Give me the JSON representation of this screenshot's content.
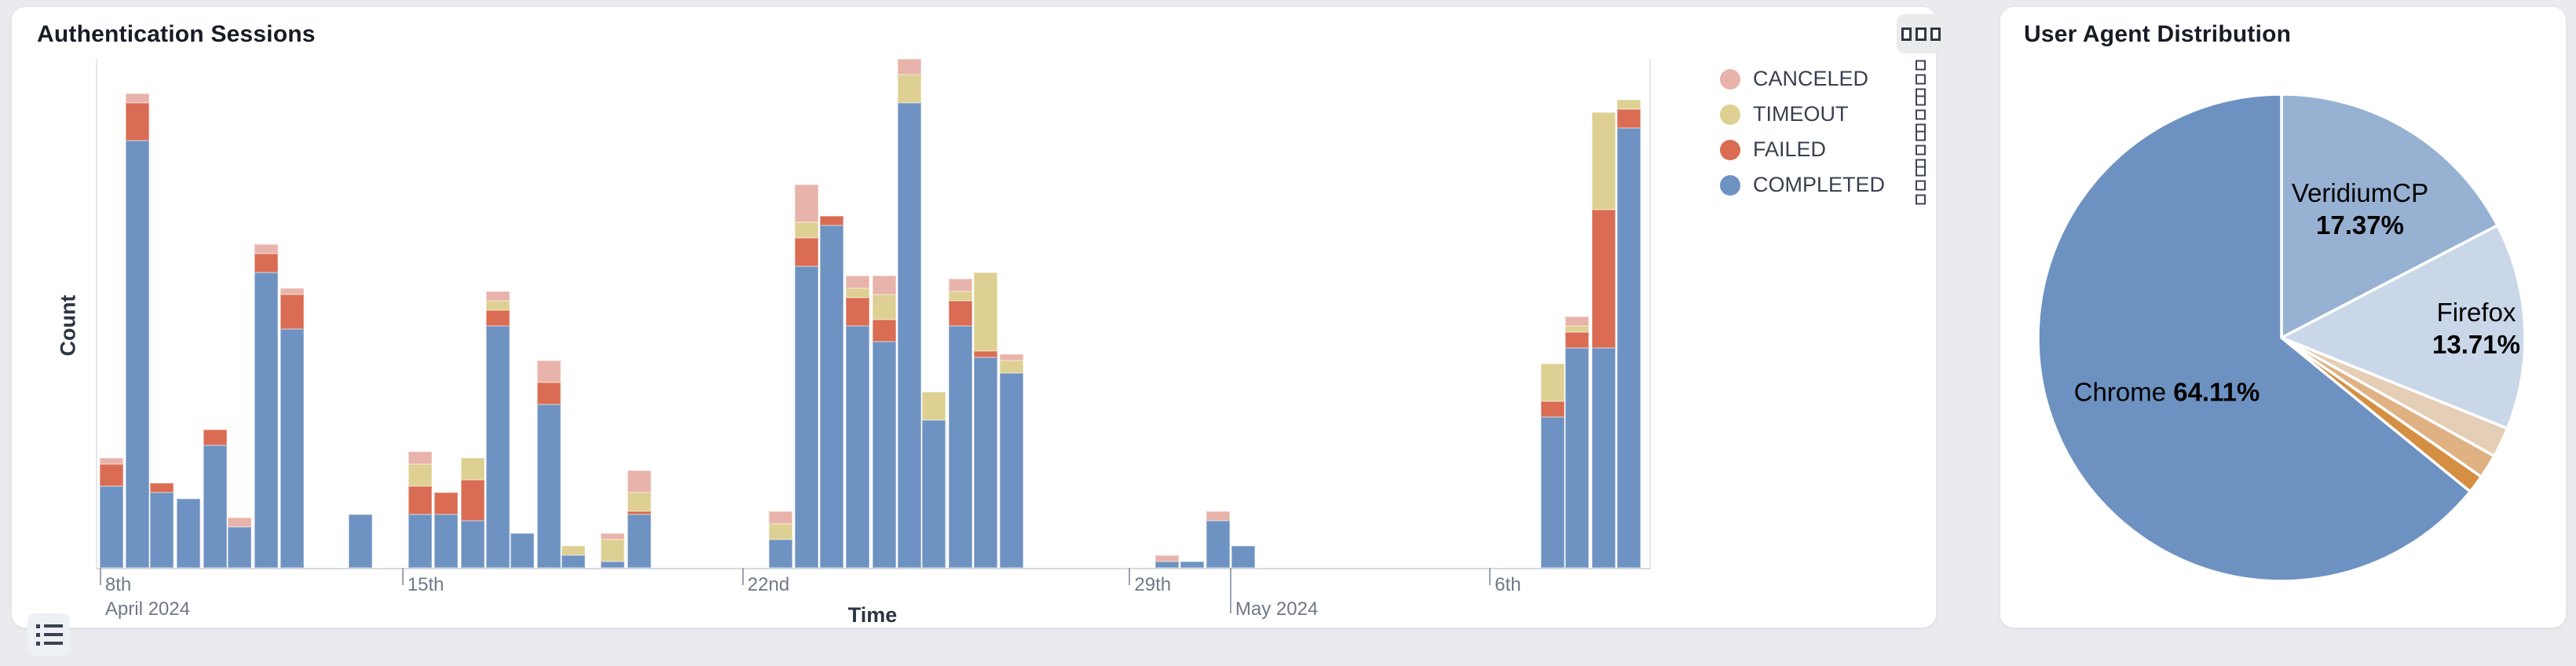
{
  "page": {
    "background": "#e9ebee"
  },
  "left_card": {
    "title": "Authentication Sessions",
    "menu_button_icon": "three-squares-icon",
    "list_button_icon": "list-icon",
    "x_axis_title": "Time",
    "y_axis_title": "Count",
    "legend": [
      {
        "label": "CANCELED",
        "color": "#e8b3aa"
      },
      {
        "label": "TIMEOUT",
        "color": "#ddd092"
      },
      {
        "label": "FAILED",
        "color": "#d96c52"
      },
      {
        "label": "COMPLETED",
        "color": "#6e92c1"
      }
    ]
  },
  "right_card": {
    "title": "User Agent Distribution"
  },
  "chart_data": [
    {
      "type": "bar",
      "stacked": true,
      "title": "Authentication Sessions",
      "xlabel": "Time",
      "ylabel": "Count",
      "grid": false,
      "y_tick_labels_visible": false,
      "ylim": [
        0,
        165
      ],
      "legend_position": "right-outside",
      "series_order": [
        "COMPLETED",
        "FAILED",
        "TIMEOUT",
        "CANCELED"
      ],
      "colors": {
        "COMPLETED": "#6e92c1",
        "FAILED": "#d96c52",
        "TIMEOUT": "#ddd092",
        "CANCELED": "#e8b3aa"
      },
      "x_ticks": [
        {
          "label": "8th",
          "sub": "April 2024",
          "pos": 0.0025,
          "long": false
        },
        {
          "label": "15th",
          "sub": null,
          "pos": 0.197,
          "long": false
        },
        {
          "label": "22nd",
          "sub": null,
          "pos": 0.416,
          "long": false
        },
        {
          "label": "29th",
          "sub": null,
          "pos": 0.665,
          "long": false
        },
        {
          "label": "May 2024",
          "sub": null,
          "pos": 0.73,
          "long": true,
          "month": true
        },
        {
          "label": "6th",
          "sub": null,
          "pos": 0.897,
          "long": false
        }
      ],
      "bars": [
        {
          "pos": 0.0025,
          "COMPLETED": 26,
          "FAILED": 7,
          "TIMEOUT": 0,
          "CANCELED": 2
        },
        {
          "pos": 0.019,
          "COMPLETED": 136,
          "FAILED": 12,
          "TIMEOUT": 0,
          "CANCELED": 3
        },
        {
          "pos": 0.035,
          "COMPLETED": 24,
          "FAILED": 3,
          "TIMEOUT": 0,
          "CANCELED": 0
        },
        {
          "pos": 0.052,
          "COMPLETED": 22,
          "FAILED": 0,
          "TIMEOUT": 0,
          "CANCELED": 0
        },
        {
          "pos": 0.069,
          "COMPLETED": 39,
          "FAILED": 5,
          "TIMEOUT": 0,
          "CANCELED": 0
        },
        {
          "pos": 0.085,
          "COMPLETED": 13,
          "FAILED": 0,
          "TIMEOUT": 0,
          "CANCELED": 3
        },
        {
          "pos": 0.102,
          "COMPLETED": 94,
          "FAILED": 6,
          "TIMEOUT": 0,
          "CANCELED": 3
        },
        {
          "pos": 0.119,
          "COMPLETED": 76,
          "FAILED": 11,
          "TIMEOUT": 0,
          "CANCELED": 2
        },
        {
          "pos": 0.163,
          "COMPLETED": 17,
          "FAILED": 0,
          "TIMEOUT": 0,
          "CANCELED": 0
        },
        {
          "pos": 0.201,
          "COMPLETED": 17,
          "FAILED": 9,
          "TIMEOUT": 7,
          "CANCELED": 4
        },
        {
          "pos": 0.218,
          "COMPLETED": 17,
          "FAILED": 7,
          "TIMEOUT": 0,
          "CANCELED": 0
        },
        {
          "pos": 0.235,
          "COMPLETED": 15,
          "FAILED": 13,
          "TIMEOUT": 7,
          "CANCELED": 0
        },
        {
          "pos": 0.251,
          "COMPLETED": 77,
          "FAILED": 5,
          "TIMEOUT": 3,
          "CANCELED": 3
        },
        {
          "pos": 0.267,
          "COMPLETED": 11,
          "FAILED": 0,
          "TIMEOUT": 0,
          "CANCELED": 0
        },
        {
          "pos": 0.284,
          "COMPLETED": 52,
          "FAILED": 7,
          "TIMEOUT": 0,
          "CANCELED": 7
        },
        {
          "pos": 0.3,
          "COMPLETED": 4,
          "FAILED": 0,
          "TIMEOUT": 3,
          "CANCELED": 0
        },
        {
          "pos": 0.325,
          "COMPLETED": 2,
          "FAILED": 0,
          "TIMEOUT": 7,
          "CANCELED": 2
        },
        {
          "pos": 0.342,
          "COMPLETED": 17,
          "FAILED": 1,
          "TIMEOUT": 6,
          "CANCELED": 7
        },
        {
          "pos": 0.433,
          "COMPLETED": 9,
          "FAILED": 0,
          "TIMEOUT": 5,
          "CANCELED": 4
        },
        {
          "pos": 0.45,
          "COMPLETED": 96,
          "FAILED": 9,
          "TIMEOUT": 5,
          "CANCELED": 12
        },
        {
          "pos": 0.466,
          "COMPLETED": 109,
          "FAILED": 3,
          "TIMEOUT": 0,
          "CANCELED": 0
        },
        {
          "pos": 0.483,
          "COMPLETED": 77,
          "FAILED": 9,
          "TIMEOUT": 3,
          "CANCELED": 4
        },
        {
          "pos": 0.5,
          "COMPLETED": 72,
          "FAILED": 7,
          "TIMEOUT": 8,
          "CANCELED": 6
        },
        {
          "pos": 0.516,
          "COMPLETED": 148,
          "FAILED": 0,
          "TIMEOUT": 9,
          "CANCELED": 5
        },
        {
          "pos": 0.532,
          "COMPLETED": 47,
          "FAILED": 0,
          "TIMEOUT": 9,
          "CANCELED": 0
        },
        {
          "pos": 0.549,
          "COMPLETED": 77,
          "FAILED": 8,
          "TIMEOUT": 3,
          "CANCELED": 4
        },
        {
          "pos": 0.565,
          "COMPLETED": 67,
          "FAILED": 2,
          "TIMEOUT": 25,
          "CANCELED": 0
        },
        {
          "pos": 0.582,
          "COMPLETED": 62,
          "FAILED": 0,
          "TIMEOUT": 4,
          "CANCELED": 2
        },
        {
          "pos": 0.682,
          "COMPLETED": 2,
          "FAILED": 0,
          "TIMEOUT": 0,
          "CANCELED": 2
        },
        {
          "pos": 0.698,
          "COMPLETED": 2,
          "FAILED": 0,
          "TIMEOUT": 0,
          "CANCELED": 0
        },
        {
          "pos": 0.715,
          "COMPLETED": 15,
          "FAILED": 0,
          "TIMEOUT": 0,
          "CANCELED": 3
        },
        {
          "pos": 0.731,
          "COMPLETED": 7,
          "FAILED": 0,
          "TIMEOUT": 0,
          "CANCELED": 0
        },
        {
          "pos": 0.93,
          "COMPLETED": 48,
          "FAILED": 5,
          "TIMEOUT": 12,
          "CANCELED": 0
        },
        {
          "pos": 0.946,
          "COMPLETED": 70,
          "FAILED": 5,
          "TIMEOUT": 2,
          "CANCELED": 3
        },
        {
          "pos": 0.963,
          "COMPLETED": 70,
          "FAILED": 44,
          "TIMEOUT": 31,
          "CANCELED": 0
        },
        {
          "pos": 0.979,
          "COMPLETED": 140,
          "FAILED": 6,
          "TIMEOUT": 3,
          "CANCELED": 0
        }
      ]
    },
    {
      "type": "pie",
      "title": "User Agent Distribution",
      "start_angle_deg_from_top": 0,
      "direction": "clockwise",
      "slices": [
        {
          "name": "VeridiumCP",
          "pct": 17.37,
          "color": "#97b1d3",
          "labeled": true,
          "label_line1": "VeridiumCP",
          "label_line2": "17.37%"
        },
        {
          "name": "Firefox",
          "pct": 13.71,
          "color": "#c9d7e9",
          "labeled": true,
          "label_line1": "Firefox",
          "label_line2": "13.71%"
        },
        {
          "name": "",
          "pct": 2.0,
          "color": "#e5ceb6",
          "labeled": false
        },
        {
          "name": "",
          "pct": 1.6,
          "color": "#dfb183",
          "labeled": false
        },
        {
          "name": "",
          "pct": 1.21,
          "color": "#d48f42",
          "labeled": false
        },
        {
          "name": "Chrome",
          "pct": 64.11,
          "color": "#6d92c1",
          "labeled": true,
          "label_inline": "Chrome ",
          "label_pct": "64.11%"
        }
      ]
    }
  ]
}
